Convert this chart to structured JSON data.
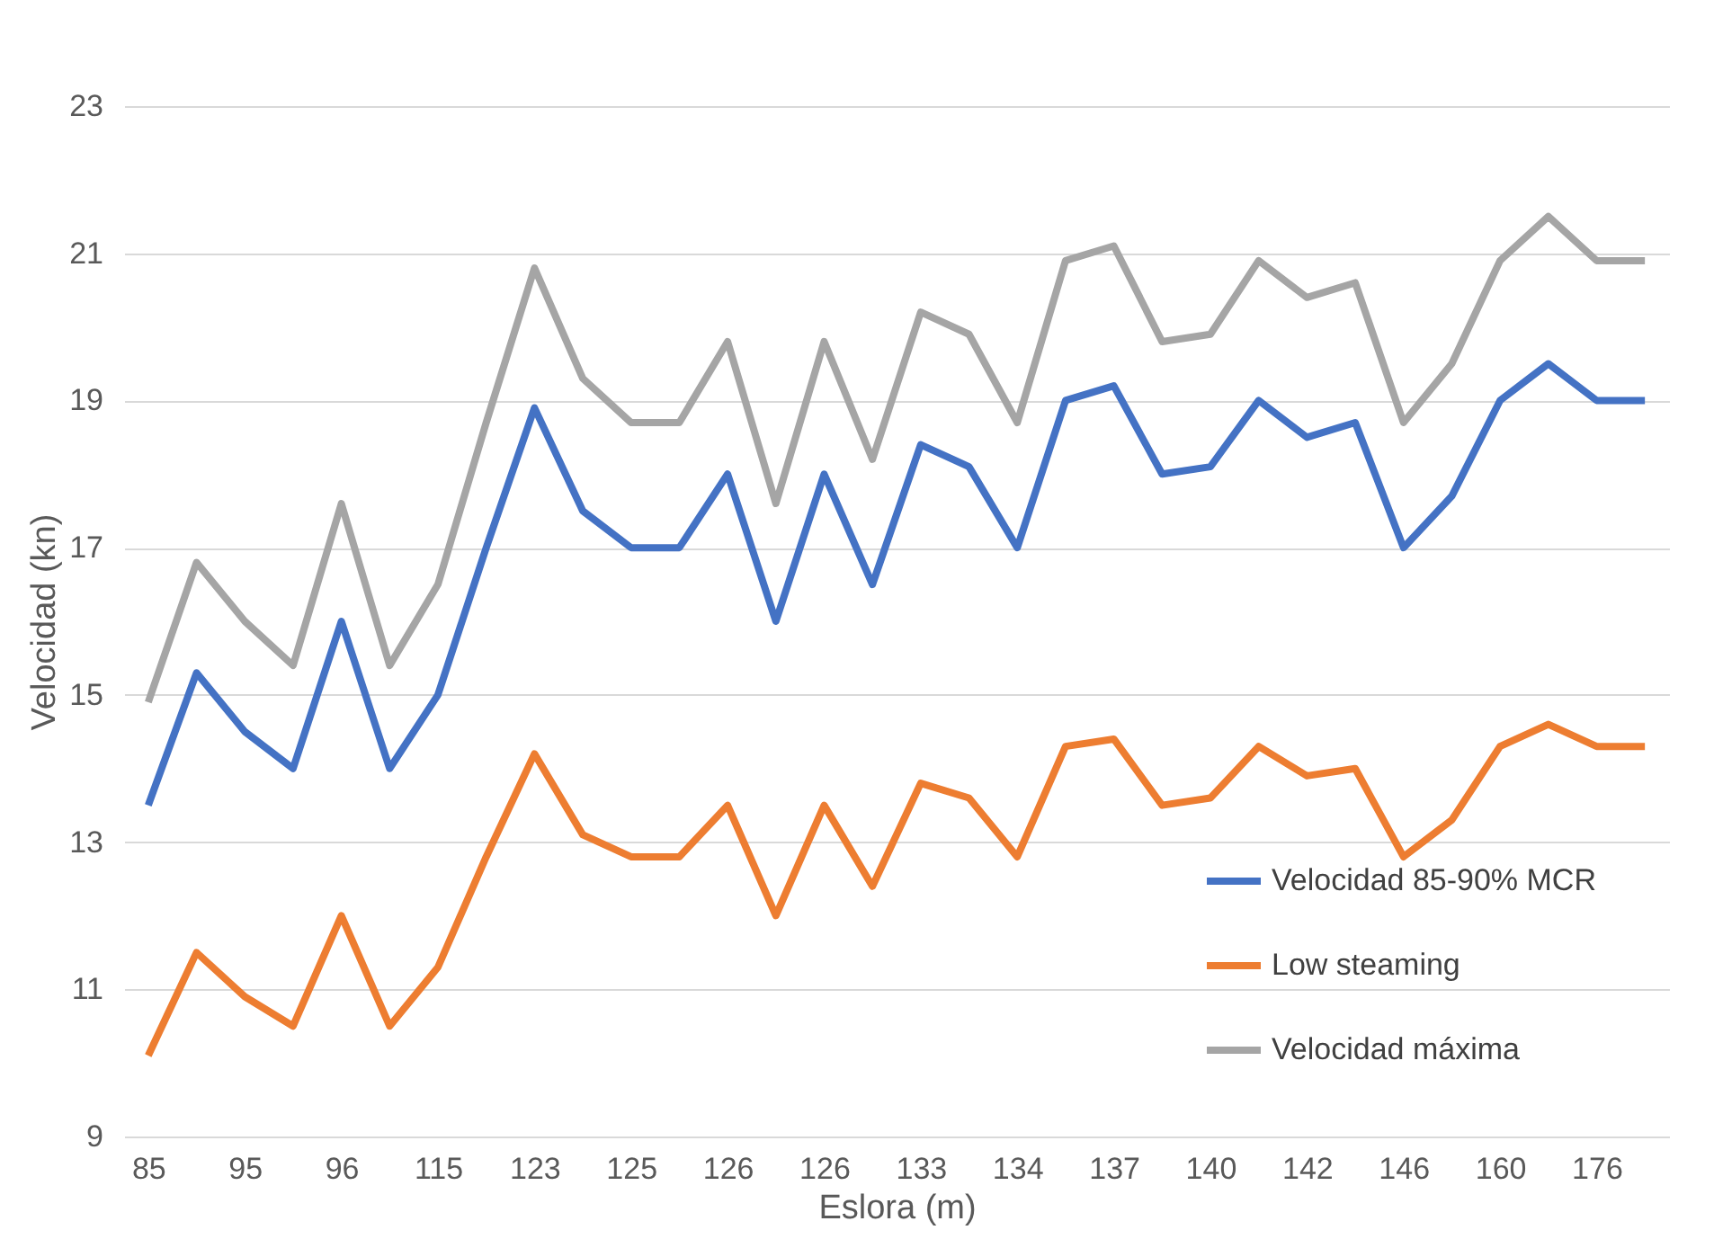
{
  "chart_data": {
    "type": "line",
    "xlabel": "Eslora (m)",
    "ylabel": "Velocidad (kn)",
    "categories": [
      "85",
      null,
      "95",
      null,
      "96",
      null,
      "115",
      null,
      "123",
      null,
      "125",
      null,
      "126",
      null,
      "126",
      null,
      "133",
      null,
      "134",
      null,
      "137",
      null,
      "140",
      null,
      "142",
      null,
      "146",
      null,
      "160",
      null,
      "176",
      null
    ],
    "series": [
      {
        "name": "Velocidad 85-90% MCR",
        "color": "#4472c4",
        "values": [
          13.5,
          15.3,
          14.5,
          14.0,
          16.0,
          14.0,
          15.0,
          17.0,
          18.9,
          17.5,
          17.0,
          17.0,
          18.0,
          16.0,
          18.0,
          16.5,
          18.4,
          18.1,
          17.0,
          19.0,
          19.2,
          18.0,
          18.1,
          19.0,
          18.5,
          18.7,
          17.0,
          17.7,
          19.0,
          19.5,
          19.0,
          19.0
        ]
      },
      {
        "name": "Low steaming",
        "color": "#ed7d31",
        "values": [
          10.1,
          11.5,
          10.9,
          10.5,
          12.0,
          10.5,
          11.3,
          12.8,
          14.2,
          13.1,
          12.8,
          12.8,
          13.5,
          12.0,
          13.5,
          12.4,
          13.8,
          13.6,
          12.8,
          14.3,
          14.4,
          13.5,
          13.6,
          14.3,
          13.9,
          14.0,
          12.8,
          13.3,
          14.3,
          14.6,
          14.3,
          14.3
        ]
      },
      {
        "name": "Velocidad máxima",
        "color": "#a5a5a5",
        "values": [
          14.9,
          16.8,
          16.0,
          15.4,
          17.6,
          15.4,
          16.5,
          18.7,
          20.8,
          19.3,
          18.7,
          18.7,
          19.8,
          17.6,
          19.8,
          18.2,
          20.2,
          19.9,
          18.7,
          20.9,
          21.1,
          19.8,
          19.9,
          20.9,
          20.4,
          20.6,
          18.7,
          19.5,
          20.9,
          21.5,
          20.9,
          20.9
        ]
      }
    ],
    "ylim": [
      9,
      23
    ],
    "yticks": [
      9,
      11,
      13,
      15,
      17,
      19,
      21,
      23
    ],
    "grid": "y",
    "legend": "bottom right",
    "marker": "none",
    "line_style": "solid"
  }
}
